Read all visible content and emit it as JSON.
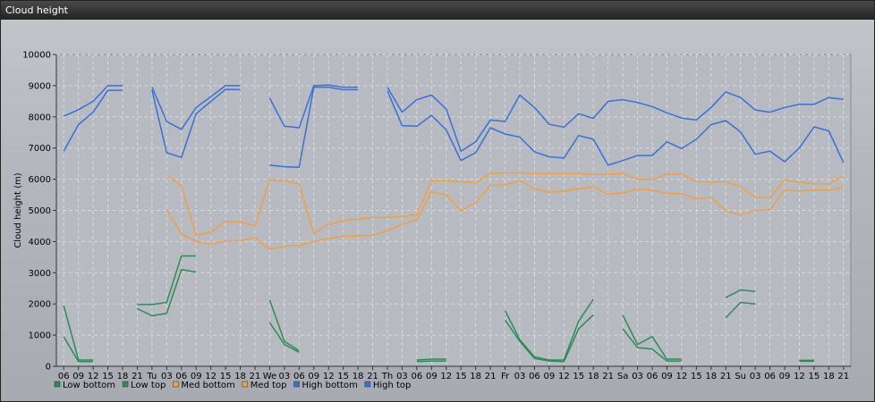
{
  "window": {
    "title": "Cloud height"
  },
  "chart_data": {
    "type": "line",
    "title": "Cloud height",
    "ylabel": "Cloud height (m)",
    "xlabel": "",
    "ylim": [
      0,
      10000
    ],
    "yticks": [
      0,
      1000,
      2000,
      3000,
      4000,
      5000,
      6000,
      7000,
      8000,
      9000,
      10000
    ],
    "x": [
      "06",
      "09",
      "12",
      "15",
      "18",
      "21",
      "Tu",
      "03",
      "06",
      "09",
      "12",
      "15",
      "18",
      "21",
      "We",
      "03",
      "06",
      "09",
      "12",
      "15",
      "18",
      "21",
      "Th",
      "03",
      "06",
      "09",
      "12",
      "15",
      "18",
      "21",
      "Fr",
      "03",
      "06",
      "09",
      "12",
      "15",
      "18",
      "21",
      "Sa",
      "03",
      "06",
      "09",
      "12",
      "15",
      "18",
      "21",
      "Su",
      "03",
      "06",
      "09",
      "12",
      "15",
      "18",
      "21"
    ],
    "legend_position": "bottom-left",
    "grid": true,
    "series": [
      {
        "name": "Low bottom",
        "color": "#2e8b57",
        "values": [
          950,
          150,
          150,
          null,
          null,
          1850,
          1620,
          1700,
          3100,
          3020,
          null,
          null,
          null,
          null,
          1400,
          700,
          450,
          null,
          null,
          null,
          null,
          null,
          null,
          null,
          150,
          170,
          170,
          null,
          null,
          null,
          1480,
          800,
          250,
          170,
          150,
          1200,
          1650,
          null,
          1200,
          600,
          550,
          170,
          170,
          null,
          null,
          1550,
          2050,
          2000,
          null,
          null,
          160,
          160,
          null,
          null
        ]
      },
      {
        "name": "Low top",
        "color": "#2e8b57",
        "values": [
          1950,
          200,
          200,
          null,
          null,
          1980,
          1980,
          2050,
          3540,
          3540,
          null,
          null,
          null,
          null,
          2130,
          800,
          500,
          null,
          null,
          null,
          null,
          null,
          null,
          null,
          200,
          230,
          230,
          null,
          null,
          null,
          1780,
          850,
          300,
          200,
          200,
          1450,
          2150,
          null,
          1640,
          700,
          950,
          230,
          230,
          null,
          null,
          2200,
          2450,
          2400,
          null,
          null,
          190,
          190,
          null,
          null
        ]
      },
      {
        "name": "Med bottom",
        "color": "#f0a040",
        "values": [
          null,
          null,
          null,
          null,
          null,
          null,
          null,
          5000,
          4250,
          4000,
          3920,
          4020,
          4030,
          4120,
          3750,
          3850,
          3870,
          4000,
          4100,
          4170,
          4180,
          4200,
          4350,
          4550,
          4700,
          5600,
          5500,
          4980,
          5250,
          5800,
          5820,
          5950,
          5700,
          5580,
          5620,
          5700,
          5750,
          5520,
          5560,
          5680,
          5650,
          5550,
          5530,
          5370,
          5420,
          4980,
          4850,
          5000,
          5020,
          5650,
          5620,
          5650,
          5650,
          5740
        ]
      },
      {
        "name": "Med top",
        "color": "#f0a040",
        "values": [
          null,
          null,
          null,
          null,
          null,
          null,
          null,
          6150,
          5780,
          4200,
          4300,
          4650,
          4630,
          4500,
          5980,
          5950,
          5850,
          4270,
          4550,
          4670,
          4720,
          4770,
          4780,
          4800,
          4870,
          5950,
          5950,
          5920,
          5880,
          6180,
          6200,
          6200,
          6180,
          6180,
          6180,
          6180,
          6150,
          6160,
          6180,
          6000,
          5980,
          6160,
          6160,
          5920,
          5900,
          5920,
          5750,
          5420,
          5400,
          5980,
          5900,
          5850,
          5850,
          6100
        ]
      },
      {
        "name": "High bottom",
        "color": "#3a6fd8",
        "values": [
          6900,
          7750,
          8150,
          8850,
          8850,
          null,
          8850,
          6850,
          6700,
          8100,
          8500,
          8880,
          8870,
          null,
          6450,
          6400,
          6380,
          8950,
          8950,
          8870,
          8870,
          null,
          8830,
          7720,
          7700,
          8050,
          7580,
          6600,
          6850,
          7650,
          7450,
          7350,
          6880,
          6720,
          6680,
          7400,
          7280,
          6450,
          6600,
          6760,
          6760,
          7200,
          6980,
          7280,
          7750,
          7880,
          7520,
          6800,
          6900,
          6560,
          7000,
          7680,
          7550,
          6530
        ]
      },
      {
        "name": "High top",
        "color": "#3a6fd8",
        "values": [
          8020,
          8230,
          8500,
          9000,
          9000,
          null,
          8950,
          7850,
          7600,
          8300,
          8650,
          9000,
          9000,
          null,
          8600,
          7700,
          7650,
          9000,
          9020,
          8950,
          8950,
          null,
          8950,
          8150,
          8550,
          8700,
          8250,
          6900,
          7200,
          7900,
          7850,
          8700,
          8300,
          7760,
          7670,
          8100,
          7950,
          8500,
          8550,
          8460,
          8330,
          8130,
          7960,
          7900,
          8300,
          8800,
          8620,
          8220,
          8150,
          8300,
          8400,
          8400,
          8620,
          8560
        ]
      }
    ]
  }
}
